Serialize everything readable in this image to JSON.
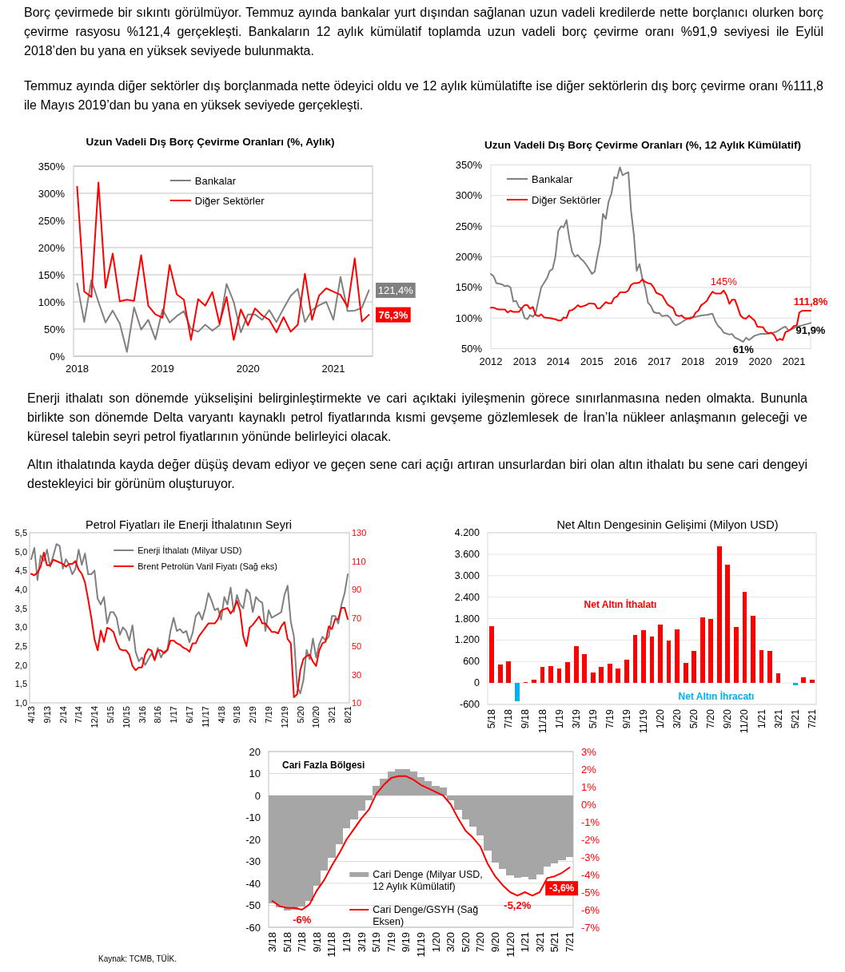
{
  "chart_data": [
    {
      "type": "other",
      "annotations": [
        "Borç çevirmede bir sıkıntı görülmüyor. Temmuz ayında bankalar yurt dışından sağlanan uzun vadeli kredilerde nette borçlanıcı olurken borç çevirme rasyosu %121,4 gerçekleşti. Bankaların 12 aylık kümülatif toplamda uzun vadeli borç çevirme oranı %91,9 seviyesi ile Eylül 2018’den bu yana en yüksek seviyede bulunmakta.",
        "Temmuz ayında diğer sektörler dış borçlanmada nette ödeyici oldu ve 12 aylık kümülatifte ise diğer sektörlerin dış borç çevirme oranı %111,8 ile Mayıs 2019’dan bu yana en yüksek seviyede gerçekleşti."
      ]
    },
    {
      "type": "line",
      "title": "Uzun Vadeli Dış Borç Çevirme Oranları (%, Aylık)",
      "categories": [
        "2018",
        null,
        null,
        null,
        null,
        null,
        null,
        null,
        null,
        null,
        null,
        null,
        "2019",
        null,
        null,
        null,
        null,
        null,
        null,
        null,
        null,
        null,
        null,
        null,
        "2020",
        null,
        null,
        null,
        null,
        null,
        null,
        null,
        null,
        null,
        null,
        null,
        "2021",
        null,
        null,
        null,
        null,
        null
      ],
      "series": [
        {
          "name": "Bankalar",
          "color": "#808080",
          "values": [
            134,
            63,
            140,
            100,
            62,
            84,
            60,
            8,
            90,
            49,
            67,
            31,
            86,
            62,
            74,
            83,
            50,
            45,
            58,
            47,
            57,
            133,
            100,
            44,
            77,
            77,
            67,
            85,
            63,
            88,
            111,
            124,
            63,
            85,
            94,
            100,
            67,
            146,
            83,
            84,
            89,
            121.4
          ],
          "value_labels": [
            null,
            null,
            null,
            null,
            null,
            null,
            null,
            null,
            null,
            null,
            null,
            null,
            null,
            null,
            null,
            null,
            null,
            null,
            null,
            null,
            null,
            null,
            null,
            null,
            null,
            null,
            null,
            null,
            null,
            null,
            null,
            null,
            null,
            null,
            null,
            null,
            null,
            null,
            null,
            null,
            null,
            "121,4%"
          ]
        },
        {
          "name": "Diğer Sektörler",
          "color": "#ff0000",
          "values": [
            312,
            119,
            109,
            320,
            126,
            189,
            101,
            104,
            102,
            186,
            93,
            77,
            71,
            168,
            114,
            104,
            30,
            105,
            93,
            118,
            60,
            109,
            30,
            86,
            57,
            88,
            75,
            67,
            44,
            72,
            45,
            58,
            152,
            67,
            112,
            125,
            119,
            113,
            91,
            180,
            64,
            76.3
          ],
          "value_labels": [
            null,
            null,
            null,
            null,
            null,
            null,
            null,
            null,
            null,
            null,
            null,
            null,
            null,
            null,
            null,
            null,
            null,
            null,
            null,
            null,
            null,
            null,
            null,
            null,
            null,
            null,
            null,
            null,
            null,
            null,
            null,
            null,
            null,
            null,
            null,
            null,
            null,
            null,
            null,
            null,
            null,
            "76,3%"
          ]
        }
      ],
      "ylim": [
        0,
        350
      ],
      "yticks": [
        {
          "value": 0,
          "label": "0%"
        },
        {
          "value": 50,
          "label": "50%"
        },
        {
          "value": 100,
          "label": "100%"
        },
        {
          "value": 150,
          "label": "150%"
        },
        {
          "value": 200,
          "label": "200%"
        },
        {
          "value": 250,
          "label": "250%"
        },
        {
          "value": 300,
          "label": "300%"
        },
        {
          "value": 350,
          "label": "350%"
        }
      ],
      "grid": "y",
      "legend": "top"
    },
    {
      "type": "line",
      "title": "Uzun Vadeli Dış Borç Çevirme Oranları (%, 12 Aylık Kümülatif)",
      "xlim": [
        "2012-01",
        "2021-07"
      ],
      "xticks": [
        "2012",
        "2013",
        "2014",
        "2015",
        "2016",
        "2017",
        "2018",
        "2019",
        "2020",
        "2021"
      ],
      "series": [
        {
          "name": "Bankalar",
          "color": "#808080",
          "x": [
            "2012-01",
            "2012-02",
            "2012-03",
            "2012-05",
            "2012-06",
            "2012-07",
            "2012-08",
            "2012-09",
            "2012-10",
            "2012-11",
            "2012-12",
            "2013-01",
            "2013-02",
            "2013-03",
            "2013-04",
            "2013-05",
            "2013-06",
            "2013-07",
            "2013-09",
            "2013-10",
            "2013-11",
            "2013-12",
            "2014-01",
            "2014-02",
            "2014-03",
            "2014-04",
            "2014-05",
            "2014-06",
            "2014-07",
            "2014-08",
            "2014-09",
            "2014-10",
            "2014-11",
            "2014-12",
            "2015-01",
            "2015-02",
            "2015-03",
            "2015-04",
            "2015-05",
            "2015-06",
            "2015-07",
            "2015-08",
            "2015-09",
            "2015-10",
            "2015-11",
            "2015-12",
            "2016-01",
            "2016-02",
            "2016-03",
            "2016-04",
            "2016-05",
            "2016-06",
            "2016-07",
            "2016-08",
            "2016-09",
            "2016-10",
            "2016-11",
            "2016-12",
            "2017-01",
            "2017-02",
            "2017-04",
            "2017-05",
            "2017-06",
            "2017-07",
            "2017-09",
            "2017-10",
            "2017-12",
            "2018-02",
            "2018-04",
            "2018-06",
            "2018-08",
            "2018-09",
            "2018-10",
            "2018-11",
            "2018-12",
            "2019-02",
            "2019-03",
            "2019-04",
            "2019-05",
            "2019-07",
            "2019-08",
            "2019-09",
            "2019-11",
            "2020-01",
            "2020-03",
            "2020-05",
            "2020-07",
            "2020-09",
            "2020-10",
            "2020-11",
            "2020-12",
            "2021-02",
            "2021-04",
            "2021-07"
          ],
          "values": [
            172,
            168,
            157,
            155,
            152,
            153,
            150,
            127,
            128,
            118,
            115,
            100,
            98,
            105,
            102,
            108,
            130,
            150,
            165,
            177,
            180,
            200,
            242,
            250,
            248,
            260,
            230,
            208,
            200,
            203,
            197,
            193,
            187,
            180,
            172,
            176,
            200,
            222,
            270,
            262,
            290,
            303,
            330,
            328,
            346,
            333,
            336,
            338,
            275,
            235,
            177,
            188,
            165,
            150,
            125,
            120,
            110,
            108,
            108,
            103,
            104,
            100,
            92,
            88,
            93,
            96,
            101,
            102,
            104,
            105,
            107,
            95,
            87,
            83,
            76,
            73,
            74,
            68,
            66,
            61,
            68,
            64,
            71,
            74,
            74,
            75,
            78,
            84,
            86,
            80,
            81,
            86,
            88,
            91.9
          ],
          "value_labels": [
            null,
            null,
            null,
            null,
            null,
            null,
            null,
            null,
            null,
            null,
            null,
            null,
            null,
            null,
            null,
            null,
            null,
            null,
            null,
            null,
            null,
            null,
            null,
            null,
            null,
            null,
            null,
            null,
            null,
            null,
            null,
            null,
            null,
            null,
            null,
            null,
            null,
            null,
            null,
            null,
            null,
            null,
            null,
            null,
            null,
            null,
            null,
            null,
            null,
            null,
            null,
            null,
            null,
            null,
            null,
            null,
            null,
            null,
            null,
            null,
            null,
            null,
            null,
            null,
            null,
            null,
            null,
            null,
            null,
            null,
            null,
            null,
            null,
            null,
            null,
            null,
            null,
            null,
            null,
            "61%",
            null,
            null,
            null,
            null,
            null,
            null,
            null,
            null,
            null,
            null,
            null,
            null,
            null,
            "91,9%"
          ]
        },
        {
          "name": "Diğer Sektörler",
          "color": "#ff0000",
          "x": [
            "2012-01",
            "2012-02",
            "2012-03",
            "2012-04",
            "2012-06",
            "2012-07",
            "2012-08",
            "2012-09",
            "2012-11",
            "2012-12",
            "2013-01",
            "2013-02",
            "2013-03",
            "2013-04",
            "2013-05",
            "2013-06",
            "2013-07",
            "2013-08",
            "2013-10",
            "2013-12",
            "2014-01",
            "2014-02",
            "2014-03",
            "2014-04",
            "2014-05",
            "2014-06",
            "2014-07",
            "2014-08",
            "2014-09",
            "2014-11",
            "2014-12",
            "2015-02",
            "2015-03",
            "2015-04",
            "2015-05",
            "2015-06",
            "2015-07",
            "2015-08",
            "2015-09",
            "2015-10",
            "2015-11",
            "2015-12",
            "2016-01",
            "2016-02",
            "2016-03",
            "2016-04",
            "2016-05",
            "2016-06",
            "2016-07",
            "2016-08",
            "2016-09",
            "2016-10",
            "2016-11",
            "2016-12",
            "2017-01",
            "2017-02",
            "2017-03",
            "2017-04",
            "2017-05",
            "2017-06",
            "2017-07",
            "2017-08",
            "2017-09",
            "2017-10",
            "2017-12",
            "2018-01",
            "2018-02",
            "2018-03",
            "2018-04",
            "2018-05",
            "2018-06",
            "2018-07",
            "2018-08",
            "2018-09",
            "2018-10",
            "2018-11",
            "2018-12",
            "2019-01",
            "2019-02",
            "2019-03",
            "2019-04",
            "2019-05",
            "2019-06",
            "2019-07",
            "2019-08",
            "2019-09",
            "2019-10",
            "2019-11",
            "2019-12",
            "2020-02",
            "2020-03",
            "2020-04",
            "2020-05",
            "2020-06",
            "2020-07",
            "2020-08",
            "2020-09",
            "2020-10",
            "2020-11",
            "2020-12",
            "2021-01",
            "2021-02",
            "2021-03",
            "2021-04",
            "2021-05",
            "2021-07"
          ],
          "values": [
            117,
            117,
            115,
            114,
            114,
            109,
            112,
            110,
            110,
            116,
            121,
            121,
            115,
            118,
            105,
            103,
            106,
            101,
            100,
            98,
            96,
            96,
            101,
            100,
            112,
            113,
            116,
            121,
            118,
            121,
            124,
            123,
            116,
            116,
            121,
            126,
            124,
            124,
            133,
            135,
            142,
            142,
            142,
            145,
            154,
            157,
            157,
            158,
            163,
            159,
            157,
            156,
            150,
            141,
            139,
            137,
            130,
            122,
            119,
            116,
            105,
            103,
            104,
            100,
            99,
            101,
            109,
            112,
            121,
            124,
            128,
            136,
            143,
            140,
            140,
            140,
            145,
            137,
            123,
            130,
            130,
            118,
            104,
            100,
            99,
            104,
            100,
            96,
            86,
            85,
            78,
            75,
            76,
            72,
            63,
            66,
            64,
            77,
            79,
            82,
            87,
            88,
            109,
            112,
            112,
            111.8
          ],
          "value_labels": [
            null,
            null,
            null,
            null,
            null,
            null,
            null,
            null,
            null,
            null,
            null,
            null,
            null,
            null,
            null,
            null,
            null,
            null,
            null,
            null,
            null,
            null,
            null,
            null,
            null,
            null,
            null,
            null,
            null,
            null,
            null,
            null,
            null,
            null,
            null,
            null,
            null,
            null,
            null,
            null,
            null,
            null,
            null,
            null,
            null,
            null,
            null,
            null,
            null,
            null,
            null,
            null,
            null,
            null,
            null,
            null,
            null,
            null,
            null,
            null,
            null,
            null,
            null,
            null,
            null,
            null,
            null,
            null,
            null,
            null,
            null,
            null,
            null,
            null,
            null,
            null,
            "145%",
            null,
            null,
            null,
            null,
            null,
            null,
            null,
            null,
            null,
            null,
            null,
            null,
            null,
            null,
            null,
            null,
            null,
            null,
            null,
            null,
            null,
            null,
            null,
            null,
            null,
            null,
            null,
            null,
            "111,8%"
          ]
        }
      ],
      "ylim": [
        50,
        350
      ],
      "yticks": [
        {
          "value": 50,
          "label": "50%"
        },
        {
          "value": 100,
          "label": "100%"
        },
        {
          "value": 150,
          "label": "150%"
        },
        {
          "value": 200,
          "label": "200%"
        },
        {
          "value": 250,
          "label": "250%"
        },
        {
          "value": 300,
          "label": "300%"
        },
        {
          "value": 350,
          "label": "350%"
        }
      ],
      "grid": "y",
      "legend": "top left"
    },
    {
      "type": "other",
      "annotations": [
        "Enerji ithalatı son dönemde yükselişini belirginleştirmekte ve cari açıktaki iyileşmenin görece sınırlanmasına neden olmakta. Bununla birlikte son dönemde Delta varyantı kaynaklı petrol fiyatlarında kısmi gevşeme gözlemlesek de İran’la nükleer anlaşmanın geleceği ve küresel talebin seyri petrol fiyatlarının yönünde belirleyici olacak.",
        "Altın ithalatında kayda değer düşüş devam ediyor ve geçen sene cari açığı artıran unsurlardan biri olan altın ithalatı bu sene cari dengeyi destekleyici bir görünüm oluşturuyor."
      ]
    },
    {
      "type": "line",
      "title": "Petrol Fiyatları ile Enerji İthalatının Seyri",
      "categories": [
        "4/13",
        null,
        null,
        null,
        null,
        "9/13",
        null,
        null,
        null,
        null,
        "2/14",
        null,
        null,
        null,
        null,
        "7/14",
        null,
        null,
        null,
        null,
        "12/14",
        null,
        null,
        null,
        null,
        "5/15",
        null,
        null,
        null,
        null,
        "10/15",
        null,
        null,
        null,
        null,
        "3/16",
        null,
        null,
        null,
        null,
        "8/16",
        null,
        null,
        null,
        null,
        "1/17",
        null,
        null,
        null,
        null,
        "6/17",
        null,
        null,
        null,
        null,
        "11/17",
        null,
        null,
        null,
        null,
        "4/18",
        null,
        null,
        null,
        null,
        "9/18",
        null,
        null,
        null,
        null,
        "2/19",
        null,
        null,
        null,
        null,
        "7/19",
        null,
        null,
        null,
        null,
        "12/19",
        null,
        null,
        null,
        null,
        "5/20",
        null,
        null,
        null,
        null,
        "10/20",
        null,
        null,
        null,
        null,
        "3/21",
        null,
        null,
        null,
        null,
        "8/21"
      ],
      "series": [
        {
          "name": "Enerji İthalatı (Milyar USD)",
          "color": "#808080",
          "values": [
            4.8,
            5.1,
            4.25,
            4.9,
            4.75,
            5.05,
            4.6,
            4.9,
            5.2,
            5.15,
            4.55,
            4.8,
            4.65,
            4.4,
            4.55,
            5.05,
            4.65,
            4.95,
            4.4,
            4.4,
            4.5,
            3.75,
            3.6,
            3.8,
            3.1,
            3.4,
            3.4,
            3.25,
            2.8,
            3.0,
            2.9,
            2.65,
            3.05,
            2.35,
            2.1,
            2.2,
            2.0,
            2.15,
            2.3,
            2.15,
            2.45,
            2.2,
            2.35,
            2.4,
            2.9,
            3.25,
            2.9,
            2.95,
            2.85,
            2.9,
            2.6,
            2.85,
            3.3,
            3.4,
            3.2,
            3.5,
            3.9,
            3.7,
            3.45,
            3.5,
            3.2,
            3.8,
            3.6,
            4.05,
            3.4,
            3.85,
            3.6,
            3.5,
            4.0,
            3.9,
            3.4,
            3.8,
            3.7,
            3.65,
            2.9,
            3.45,
            3.25,
            3.3,
            3.35,
            3.4,
            3.85,
            4.1,
            3.15,
            2.75,
            1.45,
            1.25,
            1.6,
            2.4,
            2.15,
            2.7,
            2.2,
            2.55,
            2.75,
            2.65,
            2.75,
            3.3,
            3.3,
            3.1,
            3.6,
            3.9,
            4.4
          ]
        },
        {
          "name": "Brent Petrolün Varil Fiyatı (Sağ eks)",
          "color": "#ff0000",
          "axis": "y2",
          "values": [
            101,
            100,
            102,
            106,
            116,
            107,
            107,
            111,
            110,
            109,
            108,
            106,
            108,
            108,
            110,
            104,
            101,
            95,
            83,
            70,
            55,
            47,
            61,
            53,
            63,
            62,
            60,
            53,
            48,
            47,
            47,
            44,
            36,
            33,
            35,
            35,
            44,
            48,
            47,
            40,
            47,
            47,
            45,
            47,
            54,
            54,
            52,
            51,
            49,
            48,
            46,
            52,
            52,
            57,
            60,
            63,
            66,
            66,
            66,
            69,
            75,
            76,
            77,
            73,
            76,
            82,
            75,
            57,
            50,
            63,
            65,
            68,
            71,
            66,
            66,
            63,
            60,
            60,
            59,
            64,
            67,
            55,
            52,
            14,
            16,
            33,
            41,
            43,
            44,
            39,
            36,
            47,
            52,
            53,
            64,
            62,
            69,
            69,
            77,
            77,
            69
          ]
        }
      ],
      "ylim": [
        1,
        5.5
      ],
      "yticks": [
        {
          "value": 1,
          "label": "1,0"
        },
        {
          "value": 1.5,
          "label": "1,5"
        },
        {
          "value": 2,
          "label": "2,0"
        },
        {
          "value": 2.5,
          "label": "2,5"
        },
        {
          "value": 3,
          "label": "3,0"
        },
        {
          "value": 3.5,
          "label": "3,5"
        },
        {
          "value": 4,
          "label": "4,0"
        },
        {
          "value": 4.5,
          "label": "4,5"
        },
        {
          "value": 5,
          "label": "5,0"
        },
        {
          "value": 5.5,
          "label": "5,5"
        }
      ],
      "y2lim": [
        10,
        130
      ],
      "y2ticks": [
        10,
        30,
        50,
        70,
        90,
        110,
        130
      ],
      "legend": "top"
    },
    {
      "type": "bar",
      "title": "Net Altın Dengesinin Gelişimi (Milyon USD)",
      "categories": [
        "5/18",
        null,
        "7/18",
        null,
        "9/18",
        null,
        "11/18",
        null,
        "1/19",
        null,
        "3/19",
        null,
        "5/19",
        null,
        "7/19",
        null,
        "9/19",
        null,
        "11/19",
        null,
        "1/20",
        null,
        "3/20",
        null,
        "5/20",
        null,
        "7/20",
        null,
        "9/20",
        null,
        "11/20",
        null,
        "1/21",
        null,
        "3/21",
        null,
        "5/21",
        null,
        "7/21"
      ],
      "values": [
        1590,
        520,
        610,
        -520,
        30,
        100,
        440,
        480,
        410,
        590,
        1040,
        810,
        300,
        450,
        540,
        410,
        640,
        1350,
        1470,
        1300,
        1640,
        1180,
        1500,
        570,
        900,
        1830,
        1780,
        3830,
        3310,
        1570,
        2550,
        1880,
        920,
        890,
        280,
        null,
        -60,
        170,
        100
      ],
      "colors": [
        "#ff0000",
        "#ff0000",
        "#ff0000",
        "#00b0f0",
        "#ff0000",
        "#ff0000",
        "#ff0000",
        "#ff0000",
        "#ff0000",
        "#ff0000",
        "#ff0000",
        "#ff0000",
        "#ff0000",
        "#ff0000",
        "#ff0000",
        "#ff0000",
        "#ff0000",
        "#ff0000",
        "#ff0000",
        "#ff0000",
        "#ff0000",
        "#ff0000",
        "#ff0000",
        "#ff0000",
        "#ff0000",
        "#ff0000",
        "#ff0000",
        "#ff0000",
        "#ff0000",
        "#ff0000",
        "#ff0000",
        "#ff0000",
        "#ff0000",
        "#ff0000",
        "#ff0000",
        null,
        "#00b0f0",
        "#ff0000",
        "#ff0000"
      ],
      "ylim": [
        -600,
        4200
      ],
      "yticks": [
        -600,
        0,
        600,
        {
          "value": 1200,
          "label": "1.200"
        },
        {
          "value": 1800,
          "label": "1.800"
        },
        {
          "value": 2400,
          "label": "2.400"
        },
        {
          "value": 3000,
          "label": "3.000"
        },
        {
          "value": 3600,
          "label": "3.600"
        },
        {
          "value": 4200,
          "label": "4.200"
        }
      ],
      "grid": "y",
      "annotations": [
        "Net Altın İthalatı",
        "Net Altın İhracatı"
      ]
    },
    {
      "type": "bar",
      "categories": [
        "3/18",
        null,
        "5/18",
        null,
        "7/18",
        null,
        "9/18",
        null,
        "11/18",
        null,
        "1/19",
        null,
        "3/19",
        null,
        "5/19",
        null,
        "7/19",
        null,
        "9/19",
        null,
        "11/19",
        null,
        "1/20",
        null,
        "3/20",
        null,
        "5/20",
        null,
        "7/20",
        null,
        "9/20",
        null,
        "11/20",
        null,
        "1/21",
        null,
        "3/21",
        null,
        "5/21",
        null,
        "7/21"
      ],
      "series": [
        {
          "name": "Cari Denge (Milyar USD, 12 Aylık Kümülatif)",
          "type": "bar",
          "color": "#a6a6a6",
          "values": [
            -49,
            -51,
            -52.5,
            -52,
            -50.5,
            -48,
            -41,
            -34,
            -28.5,
            -22,
            -15,
            -11,
            -7,
            -2,
            4.5,
            7.5,
            11,
            12,
            12,
            11,
            8.5,
            6.5,
            4.5,
            3.5,
            -2,
            -6.5,
            -11,
            -14,
            -18,
            -25,
            -30.5,
            -33.5,
            -36.5,
            -37.5,
            -37,
            -38,
            -36,
            -32.5,
            -31,
            -29.5,
            -28
          ]
        },
        {
          "name": "Cari Denge/GSYH (Sağ Eksen)",
          "type": "line",
          "axis": "y2",
          "color": "#ff0000",
          "values": [
            -5.5,
            -5.8,
            -5.9,
            -5.9,
            -6,
            -5.7,
            -4.9,
            -4.3,
            -3.5,
            -2.8,
            -2,
            -1.4,
            -0.8,
            -0.3,
            0.6,
            1.1,
            1.5,
            1.6,
            1.6,
            1.4,
            1.1,
            0.9,
            0.7,
            0.5,
            0,
            -0.8,
            -1.5,
            -1.9,
            -2.4,
            -3.4,
            -4.1,
            -4.6,
            -5.0,
            -5.2,
            -5.0,
            -5.2,
            -5,
            -4.2,
            -4.1,
            -3.9,
            -3.6
          ],
          "value_labels": [
            null,
            null,
            null,
            null,
            "-6%",
            null,
            null,
            null,
            null,
            null,
            null,
            null,
            null,
            null,
            null,
            null,
            null,
            null,
            null,
            null,
            null,
            null,
            null,
            null,
            null,
            null,
            null,
            null,
            null,
            null,
            null,
            null,
            null,
            "-5,2%",
            null,
            null,
            null,
            null,
            null,
            null,
            "-3,6%"
          ]
        }
      ],
      "ylim": [
        -60,
        20
      ],
      "yticks": [
        -60,
        -50,
        -40,
        -30,
        -20,
        -10,
        0,
        10,
        20
      ],
      "y2lim": [
        -7,
        3
      ],
      "y2ticks": [
        {
          "value": -7,
          "label": "-7%"
        },
        {
          "value": -6,
          "label": "-6%"
        },
        {
          "value": -5,
          "label": "-5%"
        },
        {
          "value": -4,
          "label": "-4%"
        },
        {
          "value": -3,
          "label": "-3%"
        },
        {
          "value": -2,
          "label": "-2%"
        },
        {
          "value": -1,
          "label": "-1%"
        },
        {
          "value": 0,
          "label": "0%"
        },
        {
          "value": 1,
          "label": "1%"
        },
        {
          "value": 2,
          "label": "2%"
        },
        {
          "value": 3,
          "label": "3%"
        }
      ],
      "grid": "y",
      "legend": "bottom",
      "annotations": [
        "Cari Fazla Bölgesi",
        "Kaynak: TCMB, TÜİK."
      ]
    }
  ]
}
